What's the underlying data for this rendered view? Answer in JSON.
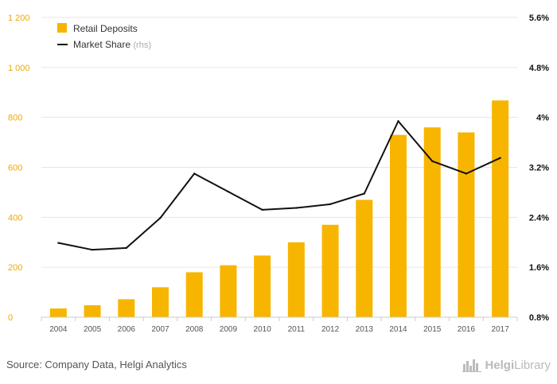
{
  "chart_data": {
    "type": "bar+line",
    "categories": [
      "2004",
      "2005",
      "2006",
      "2007",
      "2008",
      "2009",
      "2010",
      "2011",
      "2012",
      "2013",
      "2014",
      "2015",
      "2016",
      "2017"
    ],
    "series": [
      {
        "name": "Retail Deposits",
        "type": "bar",
        "axis": "left",
        "color": "#f7b500",
        "values": [
          35,
          48,
          72,
          120,
          180,
          208,
          247,
          300,
          370,
          470,
          730,
          760,
          740,
          868
        ]
      },
      {
        "name": "Market Share",
        "axis_note": "(rhs)",
        "type": "line",
        "axis": "right",
        "color": "#111111",
        "values": [
          1.99,
          1.88,
          1.91,
          2.39,
          3.1,
          2.81,
          2.52,
          2.55,
          2.61,
          2.78,
          3.94,
          3.3,
          3.1,
          3.35
        ]
      }
    ],
    "y_left": {
      "ylim": [
        0,
        1200
      ],
      "ticks": [
        0,
        200,
        400,
        600,
        800,
        1000,
        1200
      ],
      "tick_labels": [
        "0",
        "200",
        "400",
        "600",
        "800",
        "1 000",
        "1 200"
      ],
      "color": "#f0a800"
    },
    "y_right": {
      "ylim": [
        0.8,
        5.6
      ],
      "ticks": [
        0.8,
        1.6,
        2.4,
        3.2,
        4.0,
        4.8,
        5.6
      ],
      "tick_labels": [
        "0.8%",
        "1.6%",
        "2.4%",
        "3.2%",
        "4%",
        "4.8%",
        "5.6%"
      ],
      "color": "#111111"
    },
    "grid": true,
    "legend": "top-left"
  },
  "footer": {
    "source": "Source: Company Data, Helgi Analytics",
    "logo_brand": "Helgi",
    "logo_rest": "Library"
  }
}
